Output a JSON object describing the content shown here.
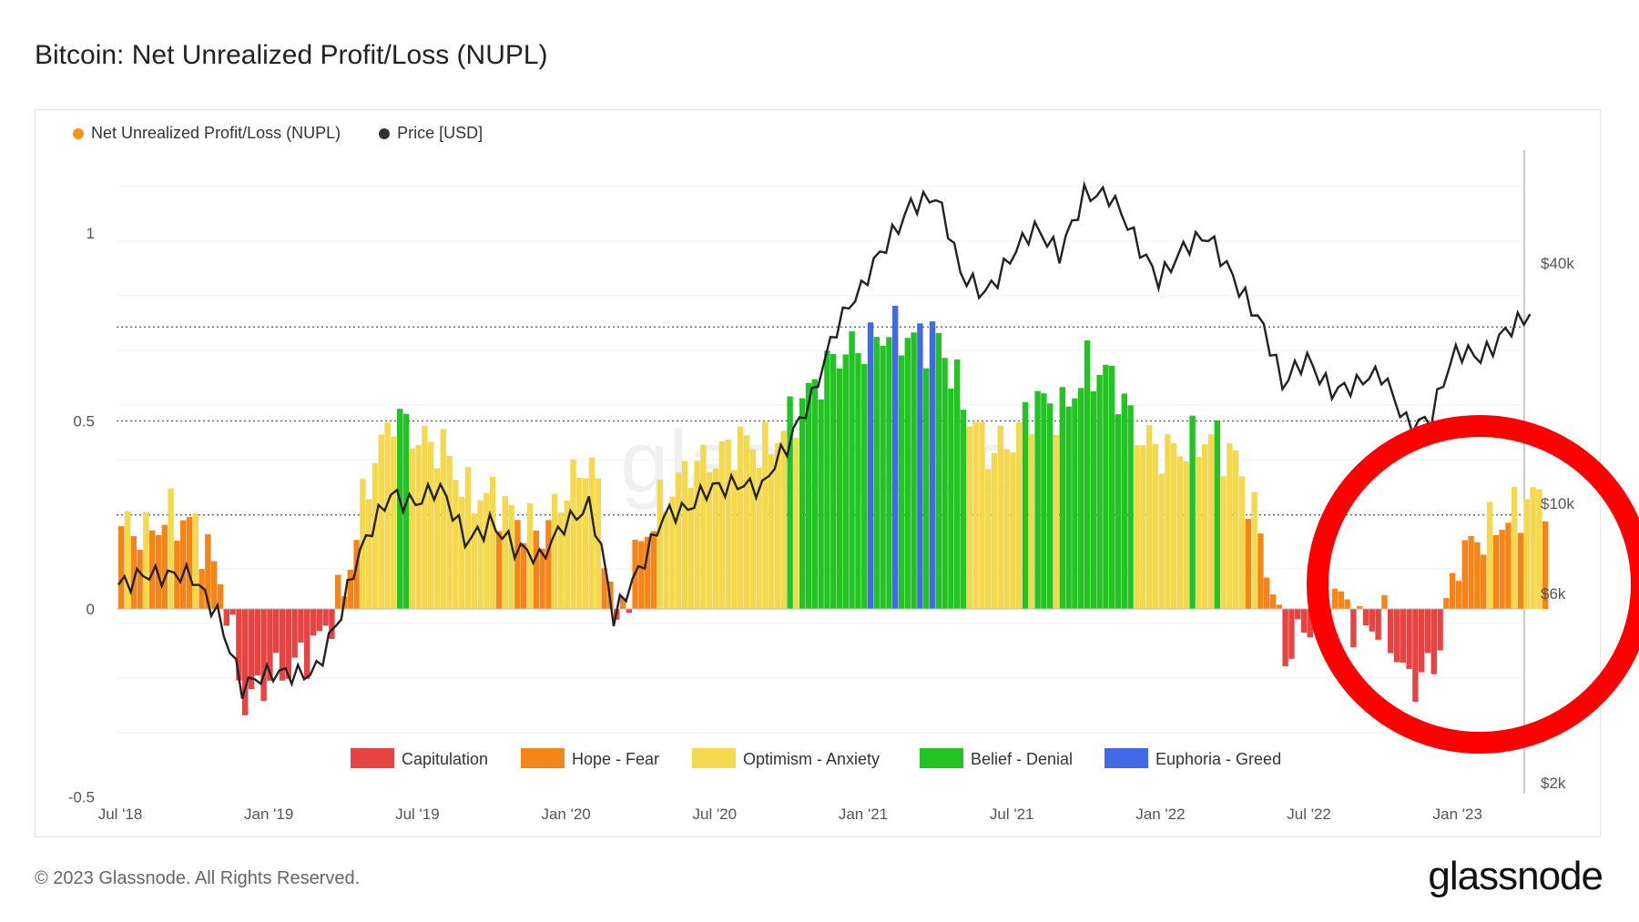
{
  "title": "Bitcoin: Net Unrealized Profit/Loss (NUPL)",
  "footer": "© 2023 Glassnode. All Rights Reserved.",
  "brand": "glassnode",
  "watermark": "glassnode",
  "top_legend": [
    {
      "label": "Net Unrealized Profit/Loss (NUPL)",
      "color": "#f7931a"
    },
    {
      "label": "Price [USD]",
      "color": "#333333"
    }
  ],
  "colors": {
    "capitulation": "#e84343",
    "hope_fear": "#f58518",
    "optimism_anxiety": "#f4d94e",
    "belief_denial": "#22c322",
    "euphoria_greed": "#4169e8",
    "price": "#222222",
    "annotation_circle": "#ff0000"
  },
  "chart_data": {
    "type": "bar",
    "x_tick_labels": [
      "Jul '18",
      "Jan '19",
      "Jul '19",
      "Jan '20",
      "Jul '20",
      "Jan '21",
      "Jul '21",
      "Jan '22",
      "Jul '22",
      "Jan '23"
    ],
    "x_range": [
      "2018-07",
      "2023-04"
    ],
    "left_axis": {
      "ticks": [
        "1",
        "0.5",
        "0",
        "-0.5"
      ],
      "range": [
        -0.5,
        1.15
      ]
    },
    "right_axis": {
      "ticks": [
        "$40k",
        "$10k",
        "$6k",
        "$2k"
      ],
      "scale": "log"
    },
    "grid": true,
    "reference_lines": [
      0.75,
      0.5,
      0.25
    ],
    "legend_bottom": [
      {
        "label": "Capitulation",
        "color": "#e84343"
      },
      {
        "label": "Hope - Fear",
        "color": "#f58518"
      },
      {
        "label": "Optimism - Anxiety",
        "color": "#f4d94e"
      },
      {
        "label": "Belief - Denial",
        "color": "#22c322"
      },
      {
        "label": "Euphoria - Greed",
        "color": "#4169e8"
      }
    ],
    "nupl_series": [
      [
        "2018-07",
        0.22
      ],
      [
        "2018-08",
        0.2
      ],
      [
        "2018-09",
        0.25
      ],
      [
        "2018-10",
        0.22
      ],
      [
        "2018-11",
        0.08
      ],
      [
        "2018-12",
        -0.25
      ],
      [
        "2019-01",
        -0.18
      ],
      [
        "2019-02",
        -0.15
      ],
      [
        "2019-03",
        -0.08
      ],
      [
        "2019-04",
        0.05
      ],
      [
        "2019-05",
        0.35
      ],
      [
        "2019-06",
        0.52
      ],
      [
        "2019-07",
        0.45
      ],
      [
        "2019-08",
        0.43
      ],
      [
        "2019-09",
        0.3
      ],
      [
        "2019-10",
        0.3
      ],
      [
        "2019-11",
        0.24
      ],
      [
        "2019-12",
        0.2
      ],
      [
        "2020-01",
        0.32
      ],
      [
        "2020-02",
        0.4
      ],
      [
        "2020-03",
        -0.05
      ],
      [
        "2020-04",
        0.18
      ],
      [
        "2020-05",
        0.3
      ],
      [
        "2020-06",
        0.38
      ],
      [
        "2020-07",
        0.4
      ],
      [
        "2020-08",
        0.45
      ],
      [
        "2020-09",
        0.42
      ],
      [
        "2020-10",
        0.5
      ],
      [
        "2020-11",
        0.6
      ],
      [
        "2020-12",
        0.68
      ],
      [
        "2021-01",
        0.7
      ],
      [
        "2021-02",
        0.74
      ],
      [
        "2021-03",
        0.72
      ],
      [
        "2021-04",
        0.72
      ],
      [
        "2021-05",
        0.55
      ],
      [
        "2021-06",
        0.42
      ],
      [
        "2021-07",
        0.45
      ],
      [
        "2021-08",
        0.56
      ],
      [
        "2021-09",
        0.52
      ],
      [
        "2021-10",
        0.64
      ],
      [
        "2021-11",
        0.62
      ],
      [
        "2021-12",
        0.47
      ],
      [
        "2022-01",
        0.42
      ],
      [
        "2022-02",
        0.43
      ],
      [
        "2022-03",
        0.46
      ],
      [
        "2022-04",
        0.4
      ],
      [
        "2022-05",
        0.2
      ],
      [
        "2022-06",
        -0.12
      ],
      [
        "2022-07",
        -0.04
      ],
      [
        "2022-08",
        0.05
      ],
      [
        "2022-09",
        -0.05
      ],
      [
        "2022-10",
        -0.04
      ],
      [
        "2022-11",
        -0.2
      ],
      [
        "2022-12",
        -0.15
      ],
      [
        "2023-01",
        0.14
      ],
      [
        "2023-02",
        0.2
      ],
      [
        "2023-03",
        0.24
      ],
      [
        "2023-04",
        0.3
      ]
    ],
    "price_series": [
      [
        "2018-07",
        6300
      ],
      [
        "2018-08",
        7000
      ],
      [
        "2018-09",
        6500
      ],
      [
        "2018-10",
        6400
      ],
      [
        "2018-11",
        5500
      ],
      [
        "2018-12",
        3500
      ],
      [
        "2019-01",
        3600
      ],
      [
        "2019-02",
        3800
      ],
      [
        "2019-03",
        4000
      ],
      [
        "2019-04",
        5200
      ],
      [
        "2019-05",
        8000
      ],
      [
        "2019-06",
        11000
      ],
      [
        "2019-07",
        10000
      ],
      [
        "2019-08",
        10500
      ],
      [
        "2019-09",
        8300
      ],
      [
        "2019-10",
        9200
      ],
      [
        "2019-11",
        7500
      ],
      [
        "2019-12",
        7200
      ],
      [
        "2020-01",
        9300
      ],
      [
        "2020-02",
        9800
      ],
      [
        "2020-03",
        5000
      ],
      [
        "2020-04",
        7000
      ],
      [
        "2020-05",
        9500
      ],
      [
        "2020-06",
        9300
      ],
      [
        "2020-07",
        11000
      ],
      [
        "2020-08",
        11700
      ],
      [
        "2020-09",
        10700
      ],
      [
        "2020-10",
        13500
      ],
      [
        "2020-11",
        19000
      ],
      [
        "2020-12",
        28000
      ],
      [
        "2021-01",
        33000
      ],
      [
        "2021-02",
        45000
      ],
      [
        "2021-03",
        58000
      ],
      [
        "2021-04",
        57000
      ],
      [
        "2021-05",
        37000
      ],
      [
        "2021-06",
        35000
      ],
      [
        "2021-07",
        41000
      ],
      [
        "2021-08",
        47000
      ],
      [
        "2021-09",
        43000
      ],
      [
        "2021-10",
        61000
      ],
      [
        "2021-11",
        57000
      ],
      [
        "2021-12",
        46000
      ],
      [
        "2022-01",
        38000
      ],
      [
        "2022-02",
        43000
      ],
      [
        "2022-03",
        45000
      ],
      [
        "2022-04",
        38000
      ],
      [
        "2022-05",
        30000
      ],
      [
        "2022-06",
        19000
      ],
      [
        "2022-07",
        23000
      ],
      [
        "2022-08",
        20000
      ],
      [
        "2022-09",
        19500
      ],
      [
        "2022-10",
        20500
      ],
      [
        "2022-11",
        16500
      ],
      [
        "2022-12",
        16500
      ],
      [
        "2023-01",
        23000
      ],
      [
        "2023-02",
        23500
      ],
      [
        "2023-03",
        28000
      ],
      [
        "2023-04",
        29000
      ]
    ]
  }
}
